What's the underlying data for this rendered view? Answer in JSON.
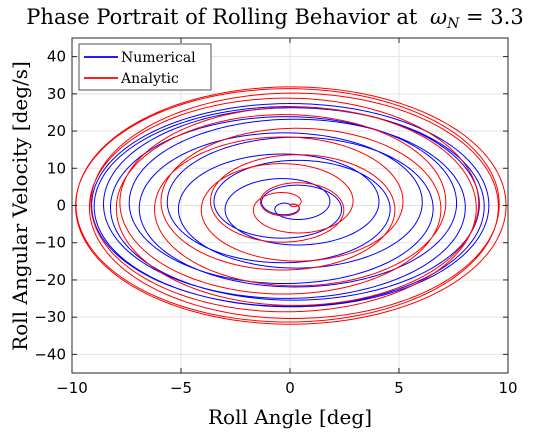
{
  "chart_data": {
    "type": "line",
    "title": "Phase Portrait of Rolling Behavior at",
    "title_math_symbol": "ω",
    "title_math_subscript": "N",
    "title_math_value": " = 3.3",
    "xlabel": "Roll Angle [deg]",
    "ylabel": "Roll Angular Velocity [deg/s]",
    "xlim": [
      -10,
      10
    ],
    "ylim": [
      -45,
      45
    ],
    "xticks": [
      -10,
      -5,
      0,
      5,
      10
    ],
    "yticks": [
      -40,
      -30,
      -20,
      -10,
      0,
      10,
      20,
      30,
      40
    ],
    "grid": true,
    "legend_position": "top-left",
    "series": [
      {
        "name": "Numerical",
        "color": "#0000ff",
        "description_params": {
          "amp_deg": 9.2,
          "omega": 3.0,
          "beat": 0.25,
          "x_scale": 1.0,
          "y_scale": 1.0
        }
      },
      {
        "name": "Analytic",
        "color": "#ff0000",
        "description_params": {
          "amp_deg": 9.6,
          "omega": 3.1,
          "beat": 0.25,
          "x_scale": 1.04,
          "y_scale": 1.04
        }
      }
    ]
  }
}
